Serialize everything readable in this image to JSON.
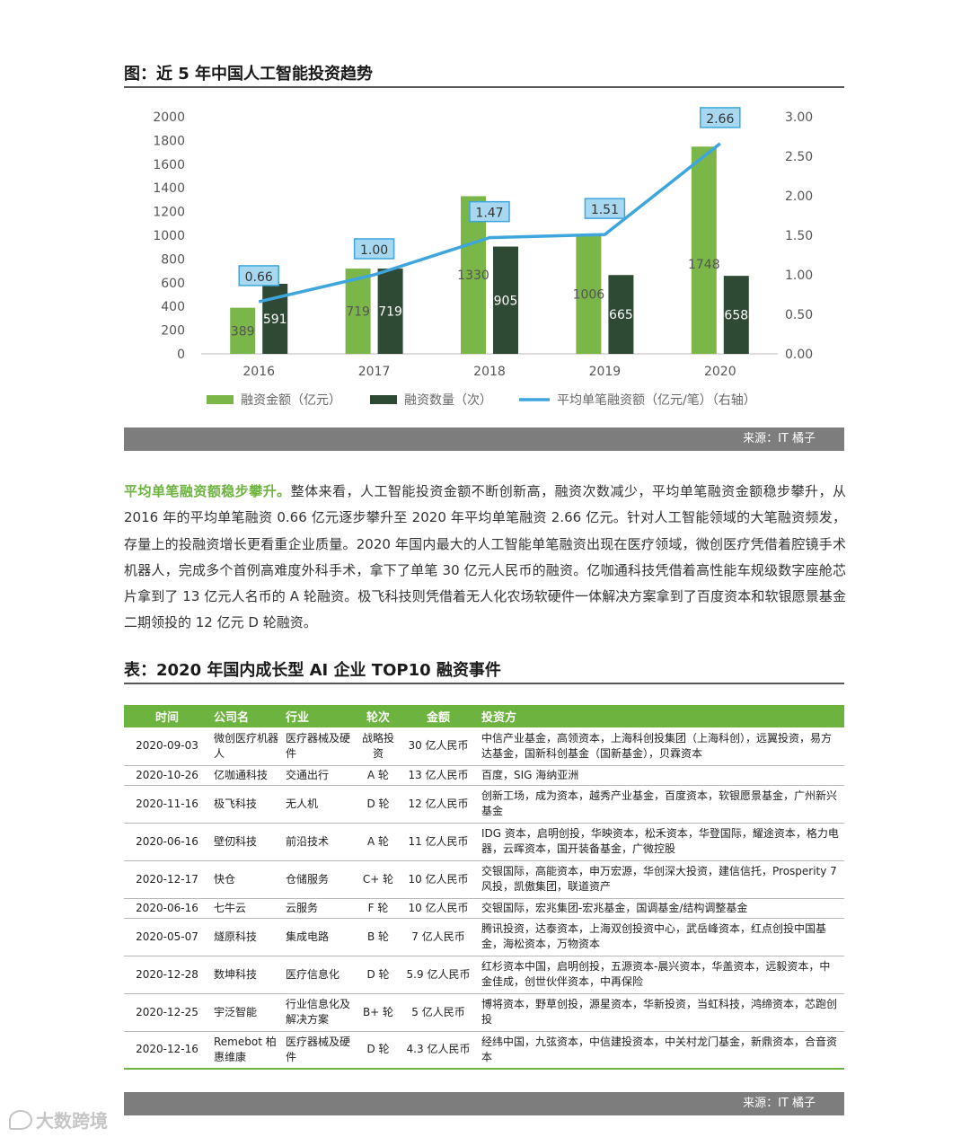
{
  "chart_title": "图：近 5 年中国人工智能投资趋势",
  "chart_source": "来源：IT 橘子",
  "chart_data": {
    "type": "bar",
    "categories": [
      "2016",
      "2017",
      "2018",
      "2019",
      "2020"
    ],
    "series": [
      {
        "name": "融资金额（亿元）",
        "type": "bar",
        "axis": "left",
        "color": "#7ab648",
        "values": [
          389,
          719,
          1330,
          1006,
          1748
        ]
      },
      {
        "name": "融资数量（次）",
        "type": "bar",
        "axis": "left",
        "color": "#2e4a35",
        "values": [
          591,
          719,
          905,
          665,
          658
        ]
      },
      {
        "name": "平均单笔融资额（亿元/笔）（右轴）",
        "type": "line",
        "axis": "right",
        "color": "#3ea6dd",
        "values": [
          0.66,
          1.0,
          1.47,
          1.51,
          2.66
        ]
      }
    ],
    "value_labels": {
      "bar1": [
        "389",
        "719",
        "1330",
        "1006",
        "1748"
      ],
      "bar2": [
        "591",
        "719",
        "905",
        "665",
        "658"
      ],
      "line": [
        "0.66",
        "1.00",
        "1.47",
        "1.51",
        "2.66"
      ]
    },
    "y_left": {
      "min": 0,
      "max": 2000,
      "ticks": [
        "0",
        "200",
        "400",
        "600",
        "800",
        "1000",
        "1200",
        "1400",
        "1600",
        "1800",
        "2000"
      ]
    },
    "y_right": {
      "min": 0,
      "max": 3,
      "ticks": [
        "0.00",
        "0.50",
        "1.00",
        "1.50",
        "2.00",
        "2.50",
        "3.00"
      ]
    },
    "grid": false,
    "legend_position": "bottom"
  },
  "paragraph": {
    "lead": "平均单笔融资额稳步攀升。",
    "text": "整体来看，人工智能投资金额不断创新高，融资次数减少，平均单笔融资金额稳步攀升，从 2016 年的平均单笔融资 0.66 亿元逐步攀升至 2020 年平均单笔融资 2.66 亿元。针对人工智能领域的大笔融资频发，存量上的投融资增长更看重企业质量。2020 年国内最大的人工智能单笔融资出现在医疗领域，微创医疗凭借着腔镜手术机器人，完成多个首例高难度外科手术，拿下了单笔 30 亿元人民币的融资。亿咖通科技凭借着高性能车规级数字座舱芯片拿到了 13 亿元人名币的 A 轮融资。极飞科技则凭借着无人化农场软硬件一体解决方案拿到了百度资本和软银愿景基金二期领投的 12 亿元 D 轮融资。"
  },
  "table_title": "表：2020 年国内成长型 AI 企业 TOP10 融资事件",
  "table": {
    "headers": [
      "时间",
      "公司名",
      "行业",
      "轮次",
      "金额",
      "投资方"
    ],
    "rows": [
      [
        "2020-09-03",
        "微创医疗机器人",
        "医疗器械及硬件",
        "战略投资",
        "30 亿人民币",
        "中信产业基金，高领资本，上海科创投集团（上海科创），远翼投资，易方达基金，国新科创基金（国新基金），贝霖资本"
      ],
      [
        "2020-10-26",
        "亿咖通科技",
        "交通出行",
        "A 轮",
        "13 亿人民币",
        "百度，SIG 海纳亚洲"
      ],
      [
        "2020-11-16",
        "极飞科技",
        "无人机",
        "D 轮",
        "12 亿人民币",
        "创新工场，成为资本，越秀产业基金，百度资本，软银愿景基金，广州新兴基金"
      ],
      [
        "2020-06-16",
        "壁仞科技",
        "前沿技术",
        "A 轮",
        "11 亿人民币",
        "IDG 资本，启明创投，华映资本，松禾资本，华登国际，耀途资本，格力电器，云晖资本，国开装备基金，广微控股"
      ],
      [
        "2020-12-17",
        "快仓",
        "仓储服务",
        "C+ 轮",
        "10 亿人民币",
        "交银国际，高能资本，申万宏源，华创深大投资，建信信托，Prosperity 7 风投，凯傲集团，联道资产"
      ],
      [
        "2020-06-16",
        "七牛云",
        "云服务",
        "F 轮",
        "10 亿人民币",
        "交银国际，宏兆集团-宏兆基金，国调基金/结构调整基金"
      ],
      [
        "2020-05-07",
        "燧原科技",
        "集成电路",
        "B 轮",
        "7 亿人民币",
        "腾讯投资，达泰资本，上海双创投资中心，武岳峰资本，红点创投中国基金，海松资本，万物资本"
      ],
      [
        "2020-12-28",
        "数坤科技",
        "医疗信息化",
        "D 轮",
        "5.9 亿人民币",
        "红杉资本中国，启明创投，五源资本-晨兴资本，华盖资本，远毅资本，中金佳成，创世伙伴资本，中再保险"
      ],
      [
        "2020-12-25",
        "宇泛智能",
        "行业信息化及解决方案",
        "B+ 轮",
        "5 亿人民币",
        "博将资本，野草创投，源星资本，华新投资，当虹科技，鸿缔资本，芯跑创投"
      ],
      [
        "2020-12-16",
        "Remebot 柏惠维康",
        "医疗器械及硬件",
        "D 轮",
        "4.3 亿人民币",
        "经纬中国，九弦资本，中信建投资本，中关村龙门基金，新鼎资本，合音资本"
      ]
    ]
  },
  "table_source": "来源：IT 橘子",
  "watermark": "大数跨境"
}
